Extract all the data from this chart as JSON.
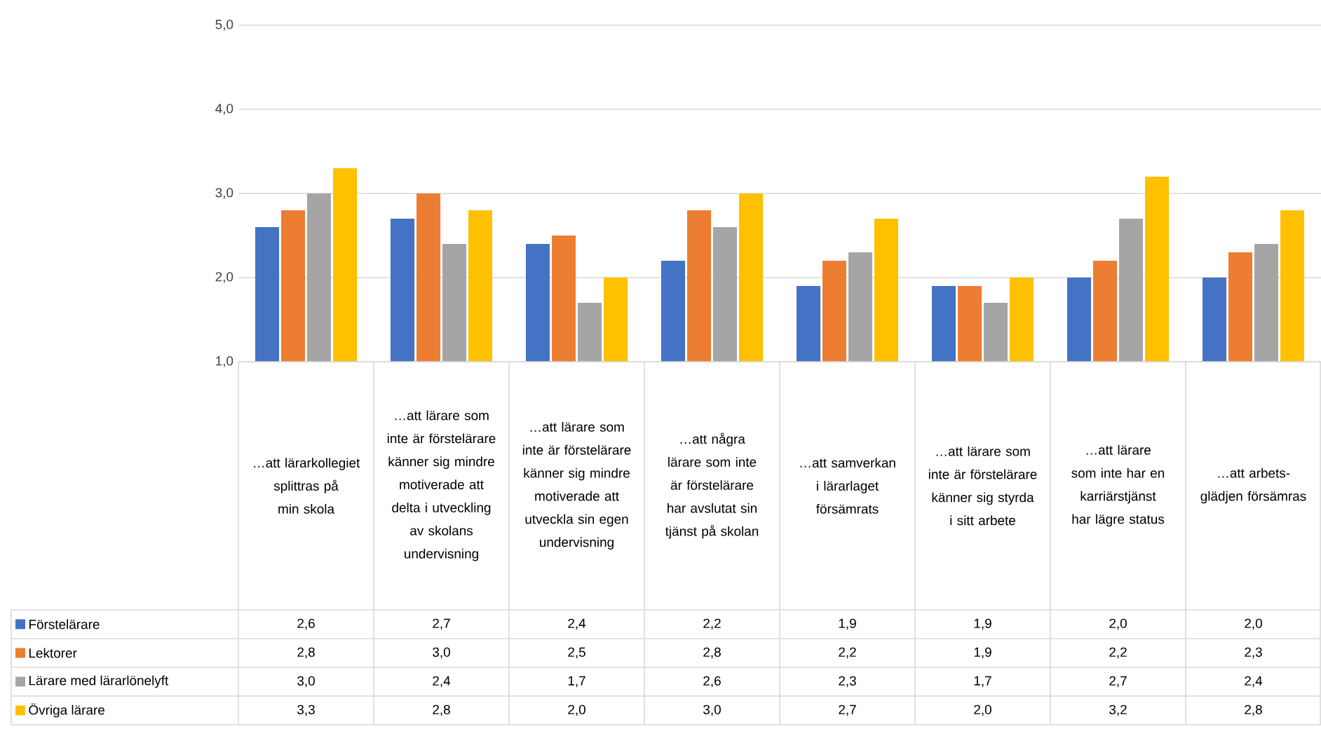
{
  "chart_data": {
    "type": "bar",
    "categories": [
      "…att lärarkollegiet splittras på min skola",
      "…att lärare som inte är förstelärare känner sig mindre motiverade att delta i utveckling av skolans undervisning",
      "…att lärare som inte är förstelärare känner sig mindre motiverade att utveckla sin egen undervisning",
      "…att några lärare som inte är förstelärare har avslutat sin tjänst på skolan",
      "…att samverkan i lärarlaget försämrats",
      "…att lärare som inte är förstelärare känner sig styrda i sitt arbete",
      "…att lärare som inte har en karriärstjänst har lägre status",
      "…att arbets-glädjen försämras"
    ],
    "series": [
      {
        "name": "Förstelärare",
        "color": "#4472c4",
        "values": [
          2.6,
          2.7,
          2.4,
          2.2,
          1.9,
          1.9,
          2.0,
          2.0
        ],
        "value_labels": [
          "2,6",
          "2,7",
          "2,4",
          "2,2",
          "1,9",
          "1,9",
          "2,0",
          "2,0"
        ]
      },
      {
        "name": "Lektorer",
        "color": "#ed7d31",
        "values": [
          2.8,
          3.0,
          2.5,
          2.8,
          2.2,
          1.9,
          2.2,
          2.3
        ],
        "value_labels": [
          "2,8",
          "3,0",
          "2,5",
          "2,8",
          "2,2",
          "1,9",
          "2,2",
          "2,3"
        ]
      },
      {
        "name": "Lärare med lärarlönelyft",
        "color": "#a5a5a5",
        "values": [
          3.0,
          2.4,
          1.7,
          2.6,
          2.3,
          1.7,
          2.7,
          2.4
        ],
        "value_labels": [
          "3,0",
          "2,4",
          "1,7",
          "2,6",
          "2,3",
          "1,7",
          "2,7",
          "2,4"
        ]
      },
      {
        "name": "Övriga lärare",
        "color": "#ffc000",
        "values": [
          3.3,
          2.8,
          2.0,
          3.0,
          2.7,
          2.0,
          3.2,
          2.8
        ],
        "value_labels": [
          "3,3",
          "2,8",
          "2,0",
          "3,0",
          "2,7",
          "2,0",
          "3,2",
          "2,8"
        ]
      }
    ],
    "ylim": [
      1,
      5
    ],
    "yticks": [
      {
        "value": 1,
        "label": "1,0"
      },
      {
        "value": 2,
        "label": "2,0"
      },
      {
        "value": 3,
        "label": "3,0"
      },
      {
        "value": 4,
        "label": "4,0"
      },
      {
        "value": 5,
        "label": "5,0"
      }
    ],
    "grid": "y",
    "legend": "bottom left"
  }
}
